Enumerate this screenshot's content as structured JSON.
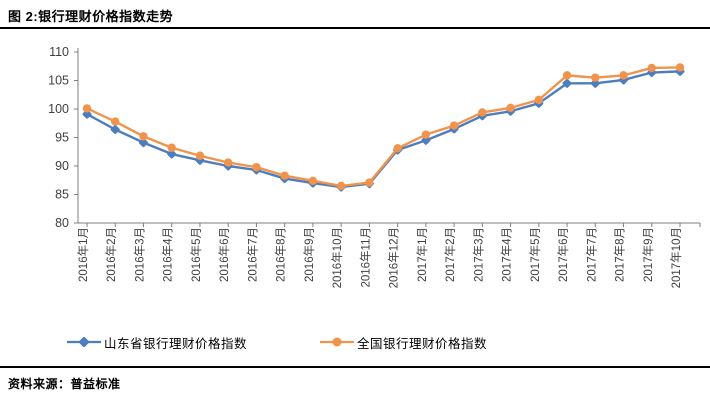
{
  "title": "图 2:银行理财价格指数走势",
  "source": {
    "label": "资料来源：普益标准"
  },
  "chart_data": {
    "type": "line",
    "title": "图 2:银行理财价格指数走势",
    "categories": [
      "2016年1月",
      "2016年2月",
      "2016年3月",
      "2016年4月",
      "2016年5月",
      "2016年6月",
      "2016年7月",
      "2016年8月",
      "2016年9月",
      "2016年10月",
      "2016年11月",
      "2016年12月",
      "2017年1月",
      "2017年2月",
      "2017年3月",
      "2017年4月",
      "2017年5月",
      "2017年6月",
      "2017年7月",
      "2017年8月",
      "2017年9月",
      "2017年10月"
    ],
    "series": [
      {
        "name": "山东省银行理财价格指数",
        "color": "#4E7DBE",
        "marker": "diamond",
        "values": [
          99.1,
          96.4,
          94.1,
          92.1,
          91.0,
          90.0,
          89.3,
          87.8,
          87.0,
          86.3,
          86.9,
          92.8,
          94.5,
          96.5,
          98.8,
          99.6,
          101.0,
          104.5,
          104.5,
          105.1,
          106.4,
          106.6
        ]
      },
      {
        "name": "全国银行理财价格指数",
        "color": "#F0944D",
        "marker": "circle",
        "values": [
          100.1,
          97.8,
          95.2,
          93.2,
          91.8,
          90.6,
          89.8,
          88.3,
          87.4,
          86.5,
          87.1,
          93.1,
          95.5,
          97.1,
          99.4,
          100.2,
          101.6,
          105.9,
          105.5,
          105.9,
          107.2,
          107.3
        ]
      }
    ],
    "xlabel": "",
    "ylabel": "",
    "ylim": [
      80,
      110
    ],
    "yticks": [
      80,
      85,
      90,
      95,
      100,
      105,
      110
    ],
    "grid": false,
    "legend_position": "bottom",
    "axis_color": "#7f7f7f",
    "tick_label_color": "#404040"
  }
}
